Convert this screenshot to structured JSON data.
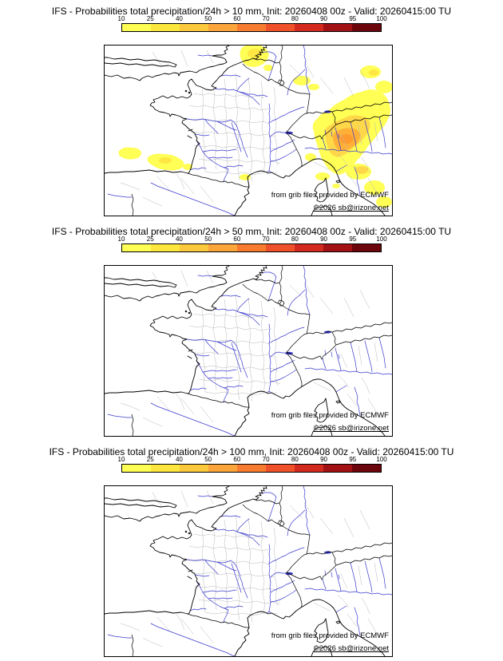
{
  "map_colors": {
    "coastline": "#000000",
    "department": "#b8b8b8",
    "river": "#3a3ace"
  },
  "colorbar": {
    "ticks": [
      "10",
      "25",
      "40",
      "50",
      "60",
      "70",
      "80",
      "90",
      "95",
      "100"
    ],
    "segment_colors": [
      "#fefe54",
      "#fde73e",
      "#fcc83c",
      "#fba53a",
      "#f87c30",
      "#ef512a",
      "#d32a20",
      "#a21114",
      "#6d050c"
    ]
  },
  "precip_overlay_colors": [
    "#ffff55",
    "#ffe743",
    "#ffd84a",
    "#ffb137",
    "#ff9a2e"
  ],
  "panels": [
    {
      "title": "IFS - Probabilities total precipitation/24h > 10 mm, Init: 20260408 00z - Valid: 20260415:00 TU",
      "credit_provider": "from grib files provided by ECMWF",
      "credit_copyright": "©2026 sb@irizone.net",
      "has_precipitation_shading": true
    },
    {
      "title": "IFS - Probabilities total precipitation/24h > 50 mm, Init: 20260408 00z - Valid: 20260415:00 TU",
      "credit_provider": "from grib files provided by ECMWF",
      "credit_copyright": "©2026 sb@irizone.net",
      "has_precipitation_shading": false
    },
    {
      "title": "IFS - Probabilities total precipitation/24h > 100 mm, Init: 20260408 00z - Valid: 20260415:00 TU",
      "credit_provider": "from grib files provided by ECMWF",
      "credit_copyright": "©2026 sb@irizone.net",
      "has_precipitation_shading": false
    }
  ]
}
